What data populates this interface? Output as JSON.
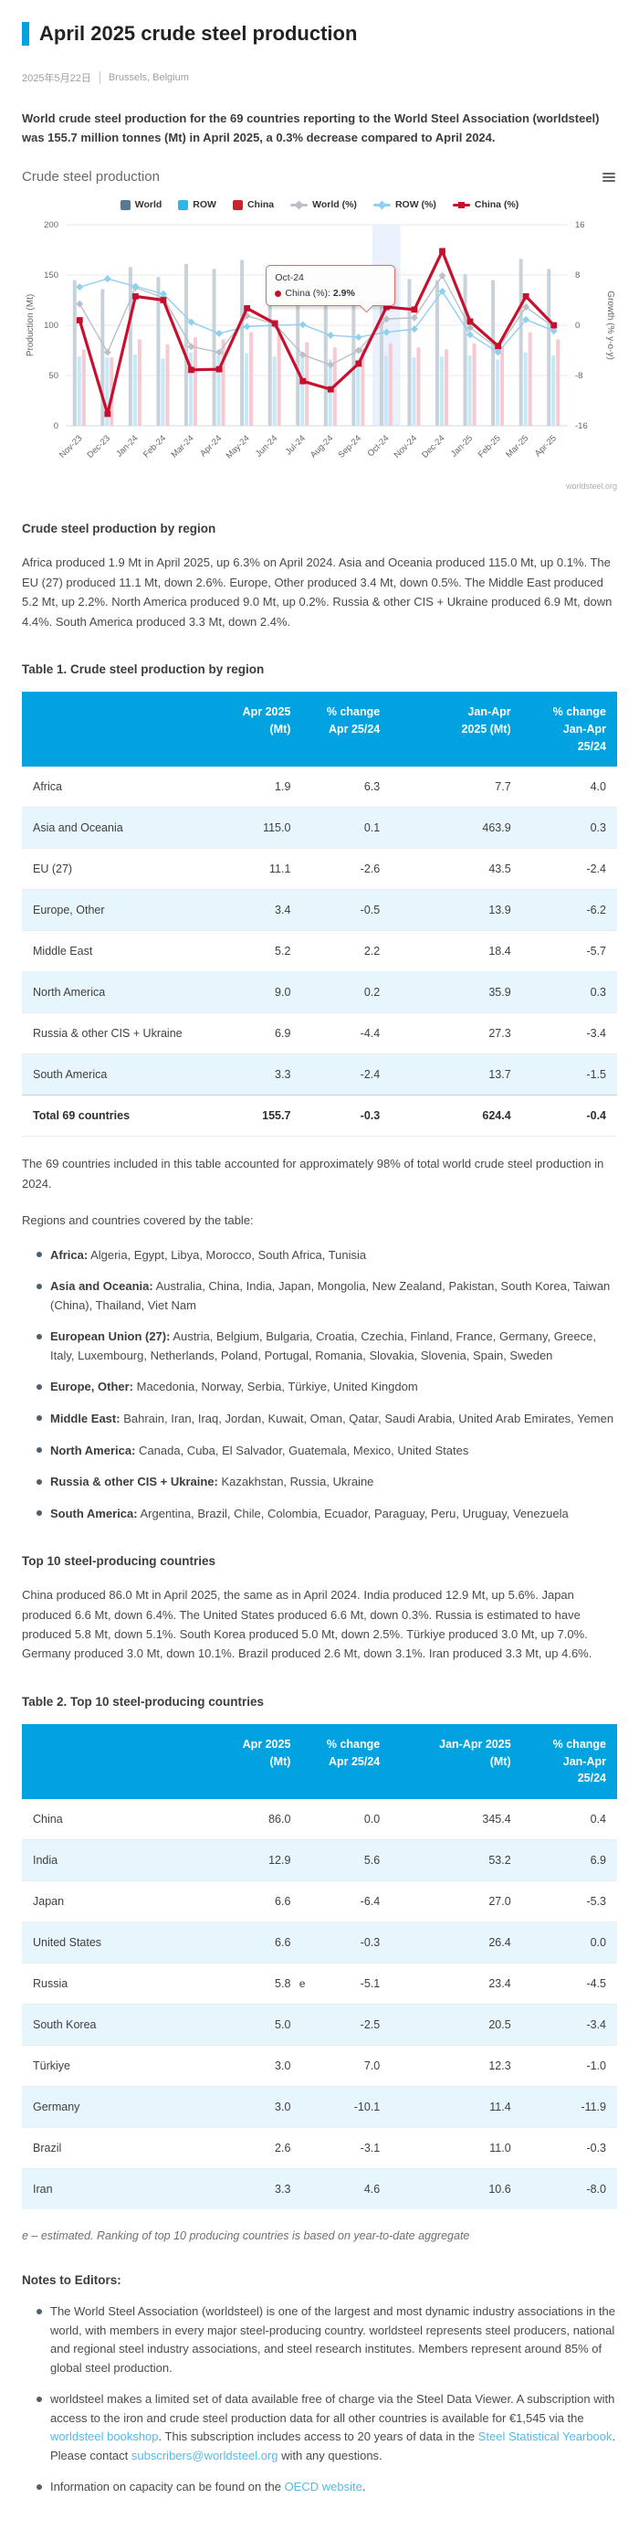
{
  "page": {
    "title": "April 2025 crude steel production",
    "date": "2025年5月22日",
    "location": "Brussels, Belgium",
    "intro": "World crude steel production for the 69 countries reporting to the World Steel Association (worldsteel) was 155.7 million tonnes (Mt) in April 2025, a 0.3% decrease compared to April 2024."
  },
  "chart": {
    "title": "Crude steel production",
    "credit": "worldsteel.org",
    "menu_icon": "context-menu",
    "tooltip": {
      "category": "Oct-24",
      "series_label": "China (%):",
      "value": "2.9%"
    }
  },
  "chart_data": {
    "type": "bar",
    "subtype": "combo column + line, dual axis",
    "categories": [
      "Nov-23",
      "Dec-23",
      "Jan-24",
      "Feb-24",
      "Mar-24",
      "Apr-24",
      "May-24",
      "Jun-24",
      "Jul-24",
      "Aug-24",
      "Sep-24",
      "Oct-24",
      "Nov-24",
      "Dec-24",
      "Jan-25",
      "Feb-25",
      "Mar-25",
      "Apr-25"
    ],
    "bar_series": [
      {
        "name": "World",
        "legend_color": "#5a788f",
        "color": "#c7d2db",
        "axis": "left",
        "values": [
          145,
          136,
          158,
          148,
          161,
          156,
          165,
          160,
          152,
          144,
          143,
          152,
          146,
          145,
          151,
          145,
          166,
          156
        ]
      },
      {
        "name": "ROW",
        "legend_color": "#2fb3e8",
        "color": "#c6e9f9",
        "axis": "left",
        "values": [
          69,
          68,
          71,
          67,
          73,
          70,
          72,
          69,
          69,
          66,
          66,
          70,
          68,
          69,
          70,
          66,
          73,
          70
        ]
      },
      {
        "name": "China",
        "legend_color": "#cf2030",
        "color": "#f7c9d0",
        "axis": "left",
        "values": [
          76,
          68,
          86,
          81,
          88,
          86,
          93,
          92,
          83,
          78,
          77,
          82,
          78,
          76,
          82,
          79,
          93,
          86
        ]
      }
    ],
    "line_series": [
      {
        "name": "World (%)",
        "color": "#b9c0c7",
        "marker": "diamond",
        "width": 1.4,
        "axis": "right",
        "values": [
          3.4,
          -4.3,
          6.0,
          4.4,
          -3.4,
          -4.3,
          1.5,
          0.2,
          -4.7,
          -6.3,
          -4.0,
          1.0,
          1.2,
          7.9,
          -0.4,
          -3.7,
          2.9,
          -0.3
        ]
      },
      {
        "name": "ROW (%)",
        "color": "#8fd0f0",
        "marker": "diamond",
        "width": 1.4,
        "axis": "right",
        "values": [
          6.1,
          7.4,
          6.2,
          5.0,
          0.5,
          -1.3,
          -0.2,
          0.0,
          0.1,
          -1.6,
          -1.9,
          -1.1,
          -0.6,
          5.4,
          -1.5,
          -4.3,
          0.9,
          -0.9
        ]
      },
      {
        "name": "China (%)",
        "color": "#c8102e",
        "marker": "square",
        "width": 3.2,
        "axis": "right",
        "values": [
          0.8,
          -14.1,
          4.6,
          4.0,
          -7.1,
          -7.0,
          2.7,
          0.3,
          -8.9,
          -10.2,
          -6.1,
          2.9,
          2.5,
          11.8,
          0.6,
          -3.3,
          4.6,
          0.0
        ]
      }
    ],
    "y_left": {
      "label": "Production (Mt)",
      "min": 0,
      "max": 200,
      "ticks": [
        0,
        50,
        100,
        150,
        200
      ]
    },
    "y_right": {
      "label": "Growth (% y-o-y)",
      "min": -16,
      "max": 16,
      "ticks": [
        -16,
        -8,
        0,
        8,
        16
      ]
    },
    "highlight_index": 11,
    "grid": "horizontal only",
    "legend_position": "top",
    "title": "Crude steel production"
  },
  "sections": {
    "region_heading": "Crude steel production by region",
    "region_paragraph": "Africa produced 1.9 Mt in April 2025, up 6.3% on April 2024. Asia and Oceania produced 115.0 Mt, up 0.1%. The EU (27) produced 11.1 Mt, down 2.6%. Europe, Other produced 3.4 Mt, down 0.5%. The Middle East produced 5.2 Mt, up 2.2%. North America produced 9.0 Mt, up 0.2%. Russia & other CIS + Ukraine produced 6.9 Mt, down 4.4%. South America produced 3.3 Mt, down 2.4%.",
    "coverage_note": "The 69 countries included in this table accounted for approximately 98% of total world crude steel production in 2024.",
    "coverage_intro": "Regions and countries covered by the table:",
    "top10_heading": "Top 10 steel-producing countries",
    "top10_paragraph": "China produced 86.0 Mt in April 2025, the same as in April 2024. India produced 12.9 Mt, up 5.6%. Japan produced 6.6 Mt, down 6.4%. The United States produced 6.6 Mt, down 0.3%. Russia is estimated to have produced 5.8 Mt, down 5.1%. South Korea produced 5.0 Mt, down 2.5%. Türkiye produced 3.0 Mt, up 7.0%. Germany produced 3.0 Mt, down 10.1%. Brazil produced 2.6 Mt, down 3.1%. Iran produced 3.3 Mt, up 4.6%.",
    "footnote": "e – estimated. Ranking of top 10 producing countries is based on year-to-date aggregate",
    "notes_heading": "Notes to Editors:"
  },
  "coverage": {
    "items": [
      {
        "label": "Africa:",
        "text": "Algeria, Egypt, Libya, Morocco, South Africa, Tunisia"
      },
      {
        "label": "Asia and Oceania:",
        "text": "Australia, China, India, Japan, Mongolia, New Zealand, Pakistan, South Korea, Taiwan (China), Thailand, Viet Nam"
      },
      {
        "label": "European Union (27):",
        "text": "Austria, Belgium, Bulgaria, Croatia, Czechia, Finland, France, Germany, Greece, Italy, Luxembourg, Netherlands, Poland, Portugal, Romania, Slovakia, Slovenia, Spain, Sweden"
      },
      {
        "label": "Europe, Other:",
        "text": "Macedonia, Norway, Serbia, Türkiye, United Kingdom"
      },
      {
        "label": "Middle East:",
        "text": "Bahrain, Iran, Iraq, Jordan, Kuwait, Oman, Qatar, Saudi Arabia, United Arab Emirates, Yemen"
      },
      {
        "label": "North America:",
        "text": "Canada, Cuba, El Salvador, Guatemala, Mexico, United States"
      },
      {
        "label": "Russia & other CIS + Ukraine:",
        "text": "Kazakhstan, Russia, Ukraine"
      },
      {
        "label": "South America:",
        "text": "Argentina, Brazil, Chile, Colombia, Ecuador, Paraguay, Peru, Uruguay, Venezuela"
      }
    ]
  },
  "tables": {
    "t1": {
      "caption": "Table 1. Crude steel production by region",
      "columns": [
        [
          "Apr 2025",
          "(Mt)"
        ],
        [
          "% change",
          "Apr 25/24"
        ],
        [
          "Jan-Apr",
          "2025 (Mt)"
        ],
        [
          "% change",
          "Jan-Apr",
          "25/24"
        ]
      ],
      "rows": [
        {
          "label": "Africa",
          "values": [
            "1.9",
            "6.3",
            "7.7",
            "4.0"
          ]
        },
        {
          "label": "Asia and Oceania",
          "values": [
            "115.0",
            "0.1",
            "463.9",
            "0.3"
          ]
        },
        {
          "label": "EU (27)",
          "values": [
            "11.1",
            "-2.6",
            "43.5",
            "-2.4"
          ]
        },
        {
          "label": "Europe, Other",
          "values": [
            "3.4",
            "-0.5",
            "13.9",
            "-6.2"
          ]
        },
        {
          "label": "Middle East",
          "values": [
            "5.2",
            "2.2",
            "18.4",
            "-5.7"
          ]
        },
        {
          "label": "North America",
          "values": [
            "9.0",
            "0.2",
            "35.9",
            "0.3"
          ]
        },
        {
          "label": "Russia & other CIS + Ukraine",
          "values": [
            "6.9",
            "-4.4",
            "27.3",
            "-3.4"
          ]
        },
        {
          "label": "South America",
          "values": [
            "3.3",
            "-2.4",
            "13.7",
            "-1.5"
          ]
        },
        {
          "label": "Total 69 countries",
          "values": [
            "155.7",
            "-0.3",
            "624.4",
            "-0.4"
          ],
          "total": true
        }
      ]
    },
    "t2": {
      "caption": "Table 2. Top 10 steel-producing countries",
      "columns": [
        [
          "Apr 2025",
          "(Mt)"
        ],
        [
          "% change",
          "Apr 25/24"
        ],
        [
          "Jan-Apr 2025",
          "(Mt)"
        ],
        [
          "% change",
          "Jan-Apr",
          "25/24"
        ]
      ],
      "rows": [
        {
          "label": "China",
          "values": [
            "86.0",
            "0.0",
            "345.4",
            "0.4"
          ]
        },
        {
          "label": "India",
          "values": [
            "12.9",
            "5.6",
            "53.2",
            "6.9"
          ]
        },
        {
          "label": "Japan",
          "values": [
            "6.6",
            "-6.4",
            "27.0",
            "-5.3"
          ]
        },
        {
          "label": "United States",
          "values": [
            "6.6",
            "-0.3",
            "26.4",
            "0.0"
          ]
        },
        {
          "label": "Russia",
          "values": [
            "5.8",
            "-5.1",
            "23.4",
            "-4.5"
          ],
          "est": "e"
        },
        {
          "label": "South Korea",
          "values": [
            "5.0",
            "-2.5",
            "20.5",
            "-3.4"
          ]
        },
        {
          "label": "Türkiye",
          "values": [
            "3.0",
            "7.0",
            "12.3",
            "-1.0"
          ]
        },
        {
          "label": "Germany",
          "values": [
            "3.0",
            "-10.1",
            "11.4",
            "-11.9"
          ]
        },
        {
          "label": "Brazil",
          "values": [
            "2.6",
            "-3.1",
            "11.0",
            "-0.3"
          ]
        },
        {
          "label": "Iran",
          "values": [
            "3.3",
            "4.6",
            "10.6",
            "-8.0"
          ]
        }
      ]
    }
  },
  "notes": {
    "items": [
      [
        {
          "t": "The World Steel Association (worldsteel) is one of the largest and most dynamic industry associations in the world, with members in every major steel-producing country. worldsteel represents steel producers, national and regional steel industry associations, and steel research institutes. Members represent around 85% of global steel production.",
          "link": false
        }
      ],
      [
        {
          "t": "worldsteel makes a limited set of data available free of charge via the Steel Data Viewer. A subscription with access to the iron and crude steel production data for all other countries is available for €1,545  via the ",
          "link": false
        },
        {
          "t": "worldsteel bookshop",
          "link": true
        },
        {
          "t": ". This subscription includes access to 20 years of data in the ",
          "link": false
        },
        {
          "t": "Steel Statistical Yearbook",
          "link": true
        },
        {
          "t": ". Please contact ",
          "link": false
        },
        {
          "t": "subscribers@worldsteel.org",
          "link": true
        },
        {
          "t": " with any questions.",
          "link": false
        }
      ],
      [
        {
          "t": "Information on capacity can be found on the ",
          "link": false
        },
        {
          "t": "OECD website",
          "link": true
        },
        {
          "t": ".",
          "link": false
        }
      ]
    ]
  },
  "colors": {
    "accent": "#00a3e0",
    "table_header": "#00a3e0",
    "row_tint": "#e7f5fc",
    "link": "#56b9e4",
    "china_red": "#c8102e",
    "highlight_band": "#eaf1fc"
  }
}
